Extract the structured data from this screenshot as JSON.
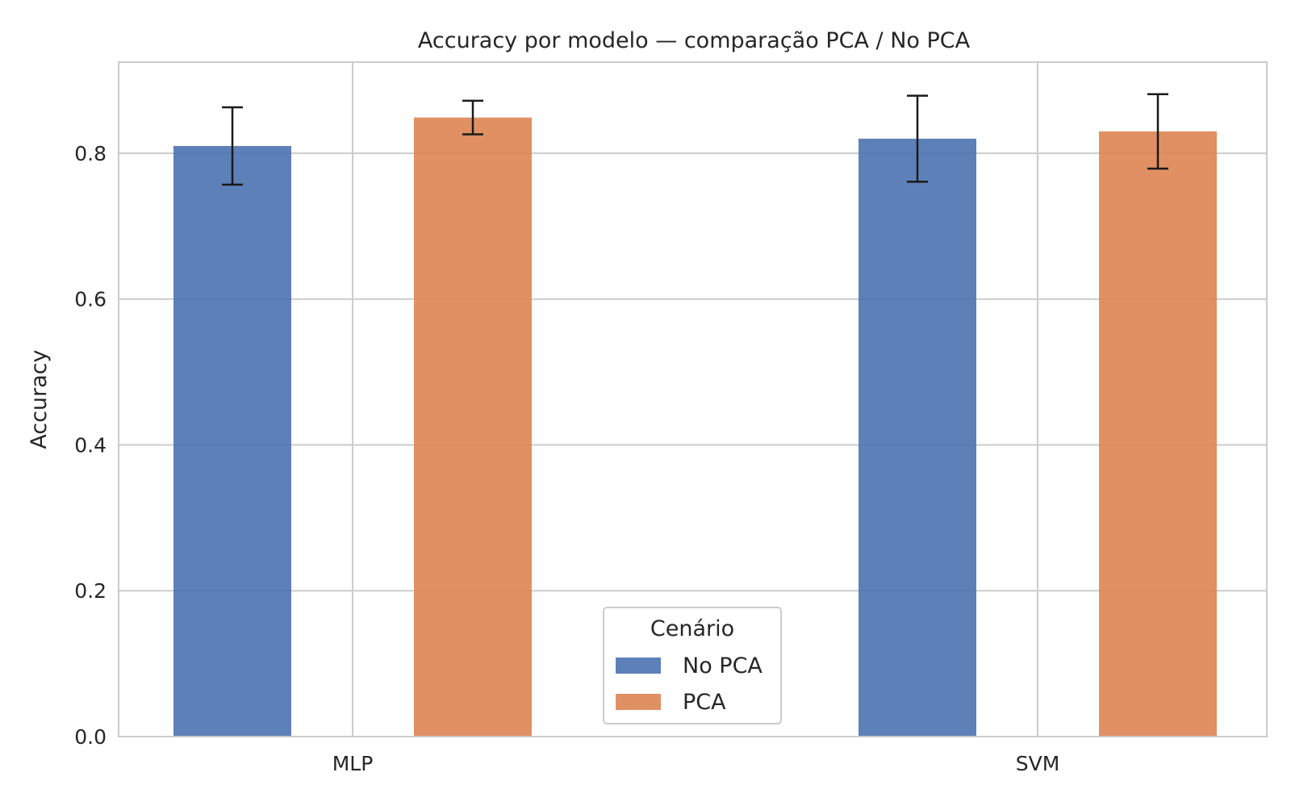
{
  "chart_data": {
    "type": "bar",
    "title": "Accuracy por modelo — comparação PCA / No PCA",
    "xlabel": "",
    "ylabel": "Accuracy",
    "categories": [
      "MLP",
      "SVM"
    ],
    "ylim": [
      0,
      0.925
    ],
    "yticks": [
      0.0,
      0.2,
      0.4,
      0.6,
      0.8
    ],
    "ytick_labels": [
      "0.0",
      "0.2",
      "0.4",
      "0.6",
      "0.8"
    ],
    "grid": true,
    "legend": {
      "title": "Cenário",
      "placement": "lower-center"
    },
    "series": [
      {
        "name": "No PCA",
        "color": "#4c72b0",
        "values": [
          0.81,
          0.82
        ],
        "errors": [
          0.053,
          0.059
        ]
      },
      {
        "name": "PCA",
        "color": "#dd8452",
        "values": [
          0.849,
          0.83
        ],
        "errors": [
          0.023,
          0.051
        ]
      }
    ],
    "colors": {
      "grid": "#cccccc",
      "axes_edge": "#cccccc",
      "error_bar": "#1a1a1a",
      "text": "#262626"
    }
  }
}
